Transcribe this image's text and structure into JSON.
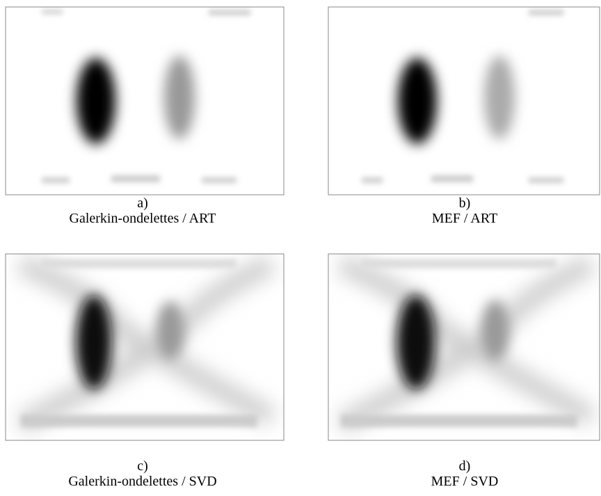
{
  "panels": [
    {
      "label": "a)",
      "caption": "Galerkin-ondelettes / ART"
    },
    {
      "label": "b)",
      "caption": "MEF / ART"
    },
    {
      "label": "c)",
      "caption": "Galerkin-ondelettes / SVD"
    },
    {
      "label": "d)",
      "caption": "MEF / SVD"
    }
  ]
}
